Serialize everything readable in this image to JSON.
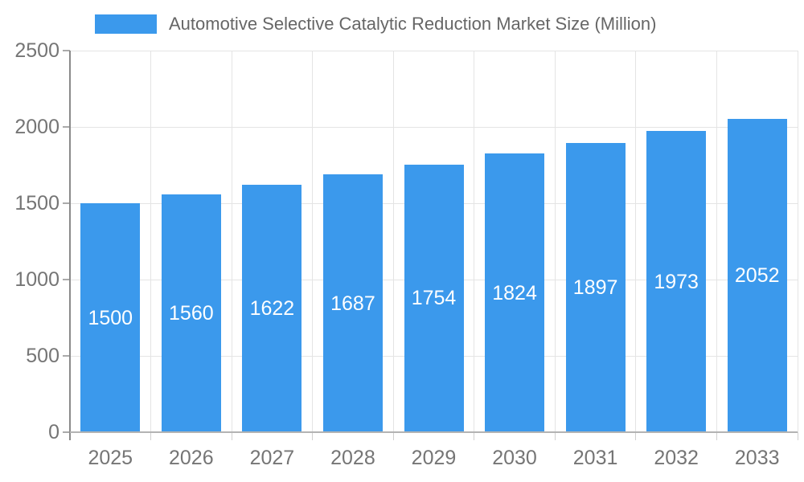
{
  "legend": {
    "label": "Automotive Selective Catalytic Reduction Market Size (Million)"
  },
  "chart_data": {
    "type": "bar",
    "title": "Automotive Selective Catalytic Reduction Market Size (Million)",
    "categories": [
      "2025",
      "2026",
      "2027",
      "2028",
      "2029",
      "2030",
      "2031",
      "2032",
      "2033"
    ],
    "values": [
      1500,
      1560,
      1622,
      1687,
      1754,
      1824,
      1897,
      1973,
      2052
    ],
    "value_labels": [
      "1500",
      "1560",
      "1622",
      "1687",
      "1754",
      "1824",
      "1897",
      "1973",
      "2052"
    ],
    "xlabel": "",
    "ylabel": "",
    "ylim": [
      0,
      2500
    ],
    "yticks": [
      0,
      500,
      1000,
      1500,
      2000,
      2500
    ],
    "ytick_labels": [
      "0",
      "500",
      "1000",
      "1500",
      "2000",
      "2500"
    ],
    "grid": true,
    "legend_position": "top",
    "colors": {
      "bar": "#3B99EC",
      "grid": "#e4e4e4",
      "x_axis": "#b3b3b3",
      "y_axis": "#8a8a8a",
      "y_tick_mark": "#aaaaaa",
      "x_tick_mark": "#d0d0d0",
      "tick_text": "#757575",
      "value_label": "#ffffff",
      "legend_text": "#666666",
      "background": "#ffffff"
    }
  }
}
